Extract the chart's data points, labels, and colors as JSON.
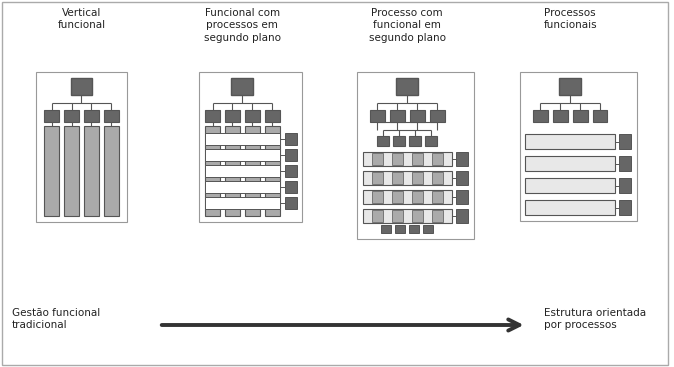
{
  "titles": [
    "Vertical\nfuncional",
    "Funcional com\nprocessos em\nsegundo plano",
    "Processo com\nfuncional em\nsegundo plano",
    "Processos\nfuncionais"
  ],
  "bottom_left": "Gestão funcional\ntradicional",
  "bottom_right": "Estrutura orientada\npor processos",
  "dark_gray": "#666666",
  "light_gray": "#aaaaaa",
  "very_light": "#e8e8e8",
  "white": "#ffffff",
  "edge_color": "#555555",
  "text_color": "#222222",
  "border_color": "#999999"
}
